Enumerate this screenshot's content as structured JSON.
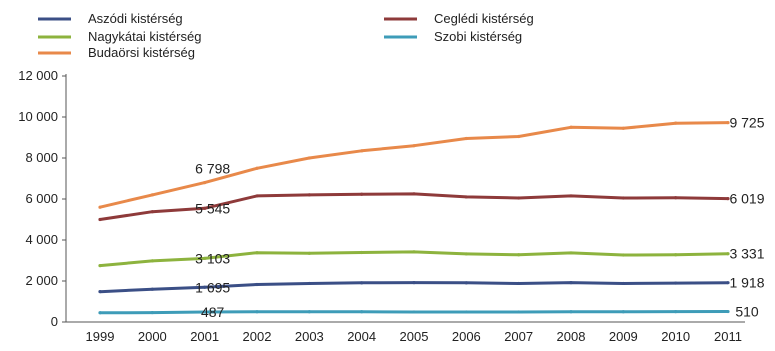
{
  "chart_data": {
    "type": "line",
    "title": "",
    "xlabel": "",
    "ylabel": "",
    "ylim": [
      0,
      12000
    ],
    "y_ticks": [
      0,
      2000,
      4000,
      6000,
      8000,
      10000,
      12000
    ],
    "y_tick_labels": [
      "0",
      "2 000",
      "4 000",
      "6 000",
      "8 000",
      "10 000",
      "12 000"
    ],
    "categories": [
      "1999",
      "2000",
      "2001",
      "2002",
      "2003",
      "2004",
      "2005",
      "2006",
      "2007",
      "2008",
      "2009",
      "2010",
      "2011"
    ],
    "grid": false,
    "legend_position": "top",
    "series": [
      {
        "name": "Aszódi kistérség",
        "color": "#3b4f86",
        "values": [
          1480,
          1600,
          1695,
          1830,
          1880,
          1910,
          1920,
          1910,
          1880,
          1920,
          1880,
          1900,
          1918
        ],
        "labels": {
          "2": "1 695",
          "12": "1 918"
        }
      },
      {
        "name": "Ceglédi kistérség",
        "color": "#8e3a3a",
        "values": [
          5000,
          5380,
          5545,
          6150,
          6200,
          6230,
          6250,
          6100,
          6050,
          6150,
          6050,
          6060,
          6019
        ],
        "labels": {
          "2": "5 545",
          "12": "6 019"
        }
      },
      {
        "name": "Nagykátai kistérség",
        "color": "#8db33e",
        "values": [
          2750,
          2980,
          3103,
          3380,
          3350,
          3390,
          3420,
          3320,
          3280,
          3370,
          3270,
          3280,
          3331
        ],
        "labels": {
          "2": "3 103",
          "12": "3 331"
        }
      },
      {
        "name": "Szobi kistérség",
        "color": "#3e9cb8",
        "values": [
          450,
          460,
          487,
          500,
          500,
          500,
          490,
          490,
          490,
          500,
          500,
          505,
          510
        ],
        "labels": {
          "2": "487",
          "12": "510"
        }
      },
      {
        "name": "Budaörsi kistérség",
        "color": "#e8894a",
        "values": [
          5600,
          6200,
          6798,
          7500,
          8000,
          8350,
          8600,
          8950,
          9050,
          9500,
          9450,
          9700,
          9725
        ],
        "labels": {
          "2": "6 798",
          "12": "9 725"
        }
      }
    ]
  }
}
